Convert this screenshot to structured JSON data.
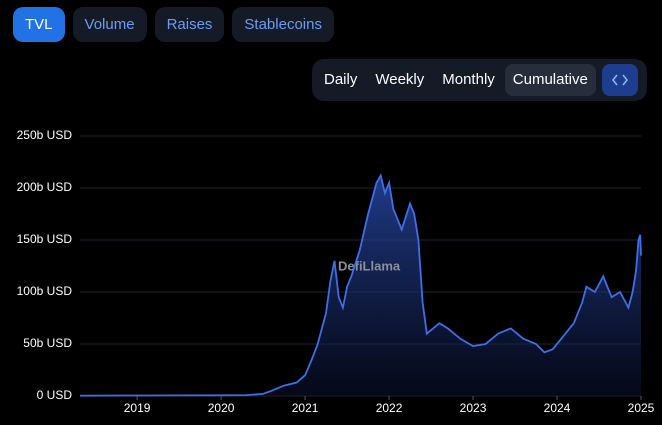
{
  "tabs": [
    "TVL",
    "Volume",
    "Raises",
    "Stablecoins"
  ],
  "periods": [
    "Daily",
    "Weekly",
    "Monthly",
    "Cumulative"
  ],
  "chart_data": {
    "type": "area",
    "watermark": "DefiLlama",
    "color": "#3e6fe8",
    "x": [
      2018.32,
      2019.0,
      2019.5,
      2020.0,
      2020.3,
      2020.5,
      2020.6,
      2020.75,
      2020.9,
      2021.0,
      2021.08,
      2021.15,
      2021.25,
      2021.3,
      2021.35,
      2021.4,
      2021.45,
      2021.5,
      2021.55,
      2021.65,
      2021.75,
      2021.85,
      2021.9,
      2021.95,
      2022.0,
      2022.05,
      2022.15,
      2022.25,
      2022.3,
      2022.35,
      2022.4,
      2022.45,
      2022.6,
      2022.7,
      2022.85,
      2023.0,
      2023.15,
      2023.3,
      2023.45,
      2023.6,
      2023.75,
      2023.85,
      2023.95,
      2024.05,
      2024.2,
      2024.3,
      2024.35,
      2024.45,
      2024.55,
      2024.65,
      2024.75,
      2024.85,
      2024.9,
      2024.94,
      2024.97,
      2024.99,
      2025.0
    ],
    "values": [
      0.3,
      0.5,
      0.6,
      0.7,
      0.9,
      2,
      5,
      10,
      13,
      20,
      35,
      50,
      80,
      110,
      130,
      95,
      85,
      105,
      115,
      140,
      175,
      205,
      212,
      195,
      205,
      180,
      160,
      185,
      175,
      150,
      90,
      60,
      70,
      65,
      55,
      48,
      50,
      60,
      65,
      55,
      50,
      42,
      45,
      55,
      70,
      90,
      105,
      100,
      115,
      95,
      100,
      85,
      100,
      120,
      150,
      155,
      135
    ],
    "xlim": [
      2018.32,
      2025.0
    ],
    "xticks": [
      2019,
      2020,
      2021,
      2022,
      2023,
      2024,
      2025
    ],
    "ylim": [
      0,
      250
    ],
    "yticks": [
      {
        "value": 0,
        "label": "0 USD"
      },
      {
        "value": 50,
        "label": "50b USD"
      },
      {
        "value": 100,
        "label": "100b USD"
      },
      {
        "value": 150,
        "label": "150b USD"
      },
      {
        "value": 200,
        "label": "200b USD"
      },
      {
        "value": 250,
        "label": "250b USD"
      }
    ],
    "grid": true
  }
}
